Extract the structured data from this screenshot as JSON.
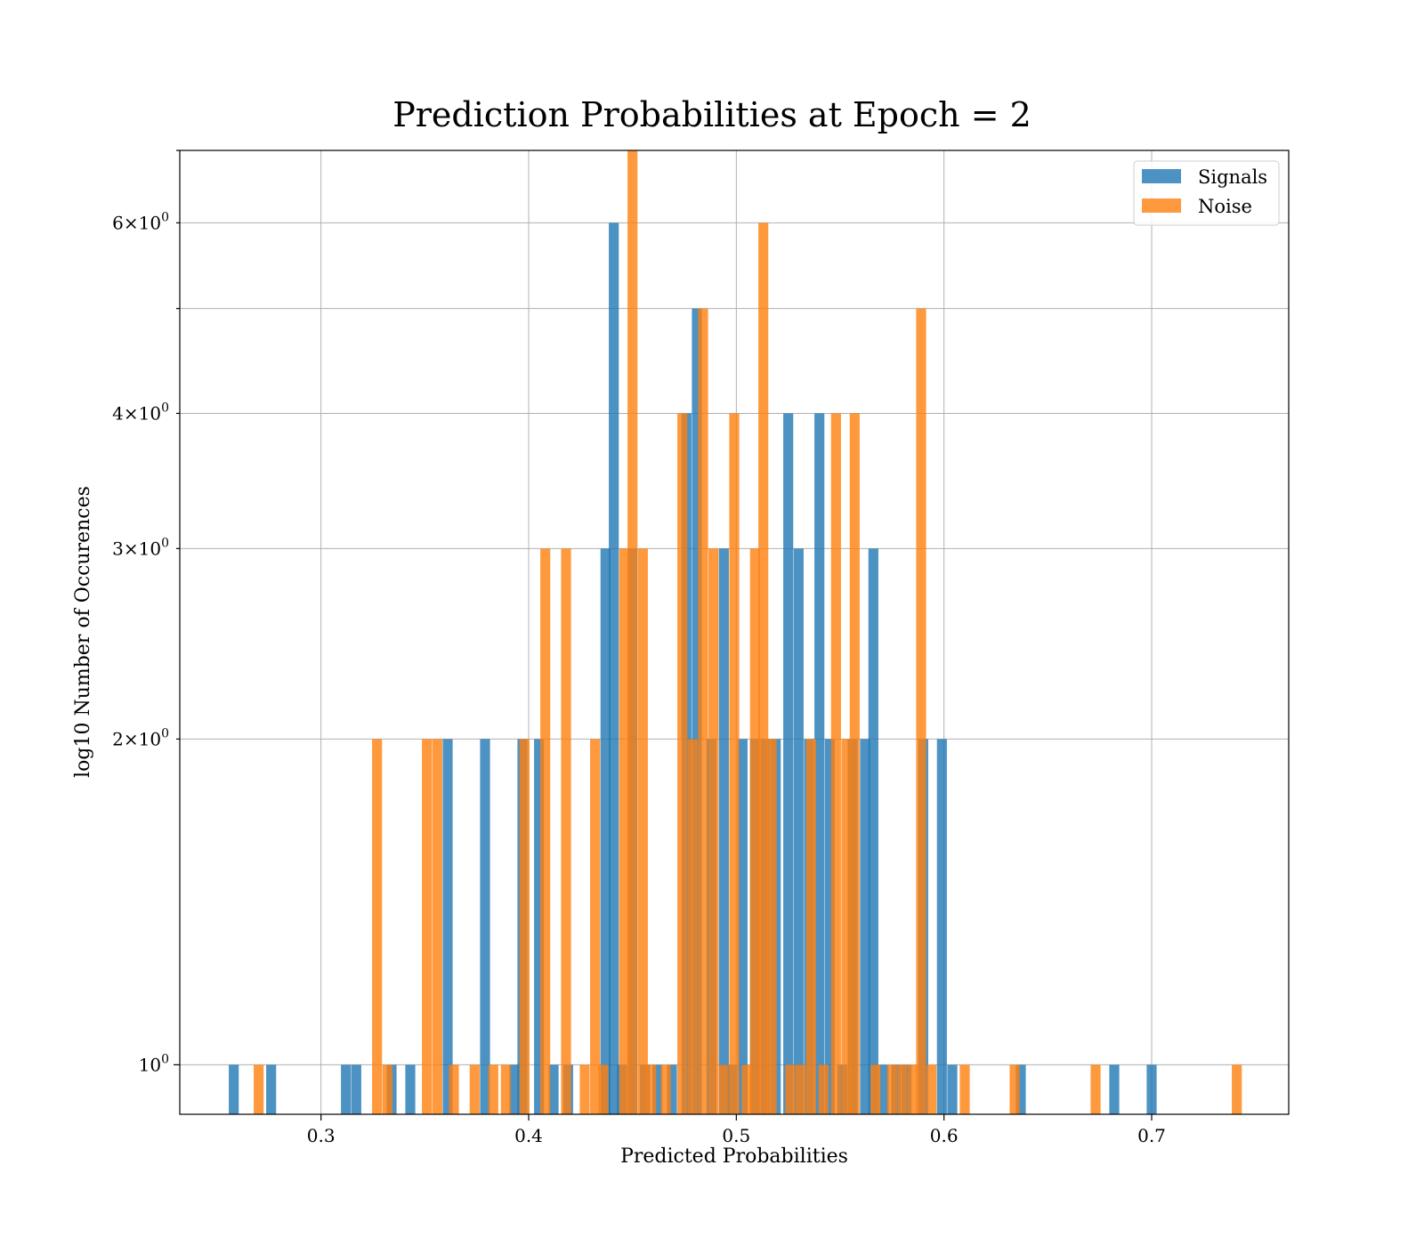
{
  "chart_data": {
    "type": "bar",
    "title": "Prediction Probabilities at Epoch = 2",
    "xlabel": "Predicted Probabilities",
    "ylabel": "log10 Number of Occurences",
    "xlim": [
      0.232,
      0.766
    ],
    "ylim": [
      0.9,
      7.0
    ],
    "yscale": "log",
    "grid": true,
    "legend": "top-right",
    "bin_width": 0.0048,
    "xticks": [
      {
        "value": 0.3,
        "label": "0.3"
      },
      {
        "value": 0.4,
        "label": "0.4"
      },
      {
        "value": 0.5,
        "label": "0.5"
      },
      {
        "value": 0.6,
        "label": "0.6"
      },
      {
        "value": 0.7,
        "label": "0.7"
      }
    ],
    "yticks_major": [
      {
        "value": 1,
        "base": "10",
        "exp": "0"
      }
    ],
    "yticks_minor": [
      {
        "value": 2,
        "mult": "2",
        "base": "10",
        "exp": "0"
      },
      {
        "value": 3,
        "mult": "3",
        "base": "10",
        "exp": "0"
      },
      {
        "value": 4,
        "mult": "4",
        "base": "10",
        "exp": "0"
      },
      {
        "value": 5,
        "mult": "",
        "base": "",
        "exp": ""
      },
      {
        "value": 6,
        "mult": "6",
        "base": "10",
        "exp": "0"
      },
      {
        "value": 7,
        "mult": "",
        "base": "",
        "exp": ""
      }
    ],
    "series": [
      {
        "name": "Signals",
        "color": "#1f77b4",
        "points": [
          [
            0.258,
            1
          ],
          [
            0.276,
            1
          ],
          [
            0.312,
            1
          ],
          [
            0.317,
            1
          ],
          [
            0.334,
            1
          ],
          [
            0.343,
            1
          ],
          [
            0.361,
            2
          ],
          [
            0.379,
            2
          ],
          [
            0.393,
            1
          ],
          [
            0.397,
            2
          ],
          [
            0.405,
            2
          ],
          [
            0.412,
            1
          ],
          [
            0.419,
            1
          ],
          [
            0.437,
            3
          ],
          [
            0.441,
            6
          ],
          [
            0.445,
            1
          ],
          [
            0.45,
            3
          ],
          [
            0.456,
            1
          ],
          [
            0.462,
            1
          ],
          [
            0.469,
            1
          ],
          [
            0.476,
            4
          ],
          [
            0.481,
            5
          ],
          [
            0.488,
            2
          ],
          [
            0.494,
            3
          ],
          [
            0.498,
            1
          ],
          [
            0.503,
            2
          ],
          [
            0.509,
            2
          ],
          [
            0.514,
            2
          ],
          [
            0.519,
            2
          ],
          [
            0.525,
            4
          ],
          [
            0.53,
            3
          ],
          [
            0.535,
            2
          ],
          [
            0.54,
            4
          ],
          [
            0.545,
            2
          ],
          [
            0.551,
            1
          ],
          [
            0.556,
            2
          ],
          [
            0.562,
            2
          ],
          [
            0.566,
            3
          ],
          [
            0.571,
            1
          ],
          [
            0.577,
            1
          ],
          [
            0.582,
            1
          ],
          [
            0.59,
            2
          ],
          [
            0.599,
            2
          ],
          [
            0.604,
            1
          ],
          [
            0.637,
            1
          ],
          [
            0.682,
            1
          ],
          [
            0.7,
            1
          ]
        ]
      },
      {
        "name": "Noise",
        "color": "#ff7f0e",
        "points": [
          [
            0.27,
            1
          ],
          [
            0.327,
            2
          ],
          [
            0.332,
            1
          ],
          [
            0.351,
            2
          ],
          [
            0.356,
            2
          ],
          [
            0.364,
            1
          ],
          [
            0.374,
            1
          ],
          [
            0.383,
            1
          ],
          [
            0.389,
            1
          ],
          [
            0.398,
            2
          ],
          [
            0.408,
            3
          ],
          [
            0.418,
            3
          ],
          [
            0.427,
            1
          ],
          [
            0.432,
            2
          ],
          [
            0.436,
            1
          ],
          [
            0.446,
            3
          ],
          [
            0.45,
            7
          ],
          [
            0.455,
            3
          ],
          [
            0.459,
            1
          ],
          [
            0.466,
            1
          ],
          [
            0.474,
            4
          ],
          [
            0.479,
            2
          ],
          [
            0.484,
            5
          ],
          [
            0.489,
            3
          ],
          [
            0.494,
            1
          ],
          [
            0.499,
            4
          ],
          [
            0.505,
            1
          ],
          [
            0.509,
            3
          ],
          [
            0.513,
            6
          ],
          [
            0.517,
            2
          ],
          [
            0.526,
            1
          ],
          [
            0.531,
            1
          ],
          [
            0.536,
            2
          ],
          [
            0.542,
            1
          ],
          [
            0.548,
            4
          ],
          [
            0.553,
            2
          ],
          [
            0.557,
            4
          ],
          [
            0.567,
            1
          ],
          [
            0.575,
            1
          ],
          [
            0.58,
            1
          ],
          [
            0.585,
            1
          ],
          [
            0.589,
            5
          ],
          [
            0.594,
            1
          ],
          [
            0.61,
            1
          ],
          [
            0.634,
            1
          ],
          [
            0.673,
            1
          ],
          [
            0.741,
            1
          ]
        ]
      }
    ]
  }
}
